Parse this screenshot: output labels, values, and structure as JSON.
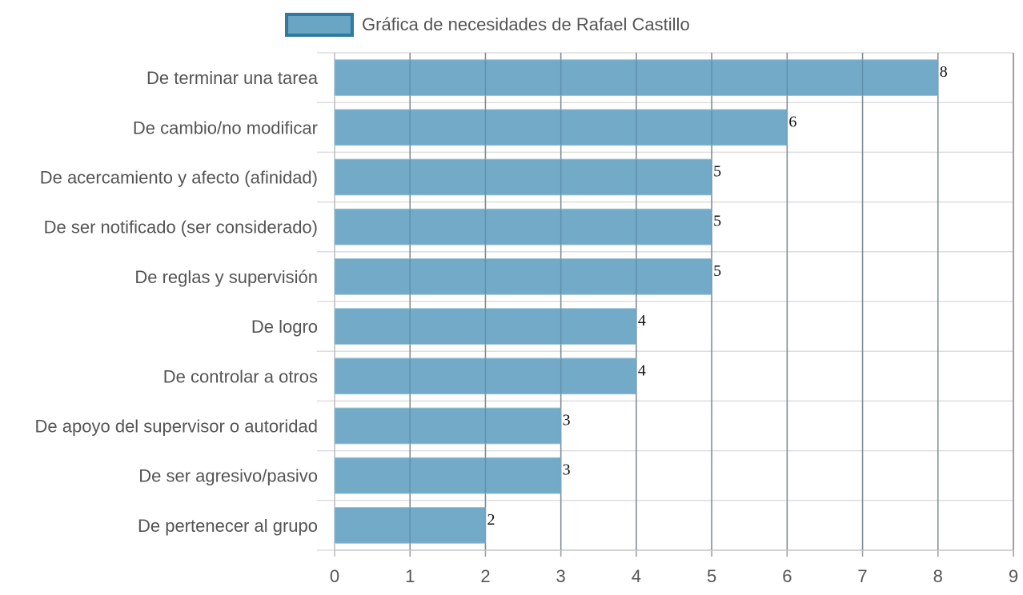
{
  "chart_data": {
    "type": "bar",
    "orientation": "horizontal",
    "legend_position": "top-center",
    "grid": true,
    "xlim": [
      0,
      9
    ],
    "x_ticks": [
      "0",
      "1",
      "2",
      "3",
      "4",
      "5",
      "6",
      "7",
      "8",
      "9"
    ],
    "categories": [
      "De terminar una tarea",
      "De cambio/no modificar",
      "De acercamiento y afecto (afinidad)",
      "De ser notificado (ser considerado)",
      "De reglas y supervisión",
      "De logro",
      "De controlar a otros",
      "De apoyo del supervisor o autoridad",
      "De ser agresivo/pasivo",
      "De pertenecer al grupo"
    ],
    "series": [
      {
        "name": "Gráfica de necesidades de Rafael Castillo",
        "values": [
          8,
          6,
          5,
          5,
          5,
          4,
          4,
          3,
          3,
          2
        ],
        "color": "#6aa5c4",
        "border_color": "#2e7aa0"
      }
    ],
    "data_labels": [
      "8",
      "6",
      "5",
      "5",
      "5",
      "4",
      "4",
      "3",
      "3",
      "2"
    ]
  }
}
